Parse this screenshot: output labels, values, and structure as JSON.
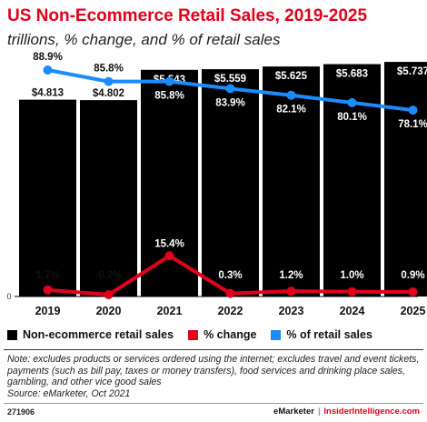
{
  "header": {
    "title": "US Non-Ecommerce Retail Sales, 2019-2025",
    "subtitle": "trillions, % change, and % of retail sales"
  },
  "chart_data": {
    "type": "bar",
    "categories": [
      "2019",
      "2020",
      "2021",
      "2022",
      "2023",
      "2024",
      "2025"
    ],
    "series": [
      {
        "name": "Non-ecommerce retail sales",
        "type": "bar",
        "values": [
          4.813,
          4.802,
          5.543,
          5.559,
          5.625,
          5.683,
          5.737
        ],
        "labels": [
          "$4.813",
          "$4.802",
          "$5.543",
          "$5.559",
          "$5.625",
          "$5.683",
          "$5.737"
        ],
        "color": "#000000"
      },
      {
        "name": "% change",
        "type": "line",
        "values": [
          1.7,
          -0.2,
          15.4,
          0.3,
          1.2,
          1.0,
          0.9
        ],
        "labels": [
          "1.7%",
          "-0.2%",
          "15.4%",
          "0.3%",
          "1.2%",
          "1.0%",
          "0.9%"
        ],
        "color": "#e3001b"
      },
      {
        "name": "% of retail sales",
        "type": "line",
        "values": [
          88.9,
          85.8,
          85.8,
          83.9,
          82.1,
          80.1,
          78.1
        ],
        "labels": [
          "88.9%",
          "85.8%",
          "85.8%",
          "83.9%",
          "82.1%",
          "80.1%",
          "78.1%"
        ],
        "color": "#1a8cff"
      }
    ],
    "y_zero_label": "0",
    "legend_position": "bottom"
  },
  "legend": {
    "items": [
      {
        "label": "Non-ecommerce retail sales",
        "color": "#000000"
      },
      {
        "label": "% change",
        "color": "#e3001b"
      },
      {
        "label": "% of retail sales",
        "color": "#1a8cff"
      }
    ]
  },
  "note": {
    "line1": "Note: excludes products or services ordered using the internet; excludes travel and event tickets, payments (such as bill pay, taxes or money transfers), food services and drinking place sales, gambling, and other vice good sales",
    "line2": "Source: eMarketer, Oct 2021"
  },
  "footer": {
    "id": "271906",
    "brand1": "eMarketer",
    "separator": "|",
    "brand2": "InsiderIntelligence.com"
  }
}
